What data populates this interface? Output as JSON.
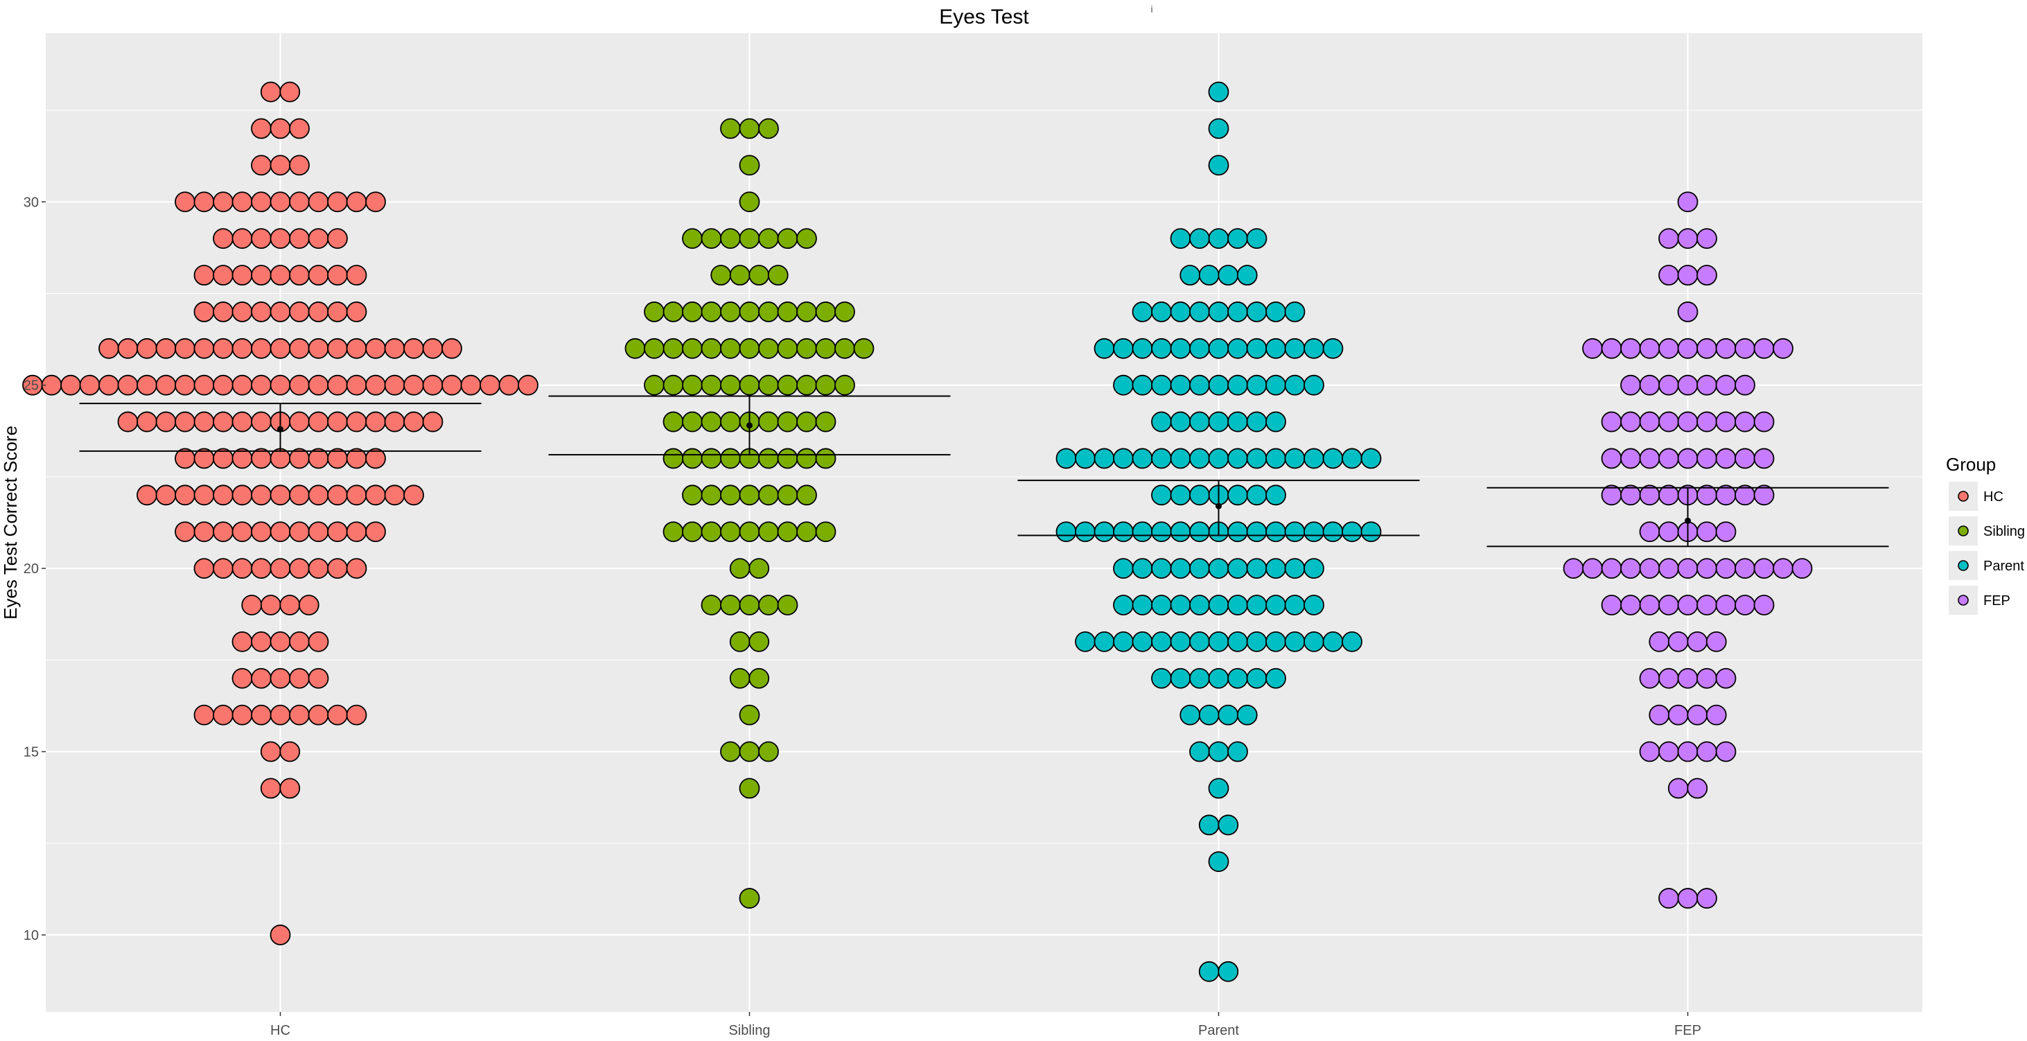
{
  "chart_data": {
    "type": "scatter",
    "subtype": "dotplot-with-mean-and-confidence-interval",
    "title": "Eyes Test",
    "title_mark": "i",
    "xlabel": "",
    "ylabel": "Eyes Test Correct Score",
    "categories": [
      "HC",
      "Sibling",
      "Parent",
      "FEP"
    ],
    "ylim": [
      7.9,
      34.6
    ],
    "yticks": [
      10,
      15,
      20,
      25,
      30
    ],
    "grid": true,
    "legend": {
      "title": "Group",
      "position": "right",
      "entries": [
        "HC",
        "Sibling",
        "Parent",
        "FEP"
      ]
    },
    "series": [
      {
        "name": "HC",
        "color": "#F8766D",
        "counts": [
          {
            "score": 33,
            "n": 2
          },
          {
            "score": 32,
            "n": 3
          },
          {
            "score": 31,
            "n": 3
          },
          {
            "score": 30,
            "n": 11
          },
          {
            "score": 29,
            "n": 7
          },
          {
            "score": 28,
            "n": 9
          },
          {
            "score": 27,
            "n": 9
          },
          {
            "score": 26,
            "n": 19
          },
          {
            "score": 25,
            "n": 27
          },
          {
            "score": 24,
            "n": 17
          },
          {
            "score": 23,
            "n": 11
          },
          {
            "score": 22,
            "n": 15
          },
          {
            "score": 21,
            "n": 11
          },
          {
            "score": 20,
            "n": 9
          },
          {
            "score": 19,
            "n": 4
          },
          {
            "score": 18,
            "n": 5
          },
          {
            "score": 17,
            "n": 5
          },
          {
            "score": 16,
            "n": 9
          },
          {
            "score": 15,
            "n": 2
          },
          {
            "score": 14,
            "n": 2
          },
          {
            "score": 10,
            "n": 1
          }
        ],
        "mean": 23.8,
        "ci": [
          23.2,
          24.5
        ]
      },
      {
        "name": "Sibling",
        "color": "#7CAE00",
        "counts": [
          {
            "score": 32,
            "n": 3
          },
          {
            "score": 31,
            "n": 1
          },
          {
            "score": 30,
            "n": 1
          },
          {
            "score": 29,
            "n": 7
          },
          {
            "score": 28,
            "n": 4
          },
          {
            "score": 27,
            "n": 11
          },
          {
            "score": 26,
            "n": 13
          },
          {
            "score": 25,
            "n": 11
          },
          {
            "score": 24,
            "n": 9
          },
          {
            "score": 23,
            "n": 9
          },
          {
            "score": 22,
            "n": 7
          },
          {
            "score": 21,
            "n": 9
          },
          {
            "score": 20,
            "n": 2
          },
          {
            "score": 19,
            "n": 5
          },
          {
            "score": 18,
            "n": 2
          },
          {
            "score": 17,
            "n": 2
          },
          {
            "score": 16,
            "n": 1
          },
          {
            "score": 15,
            "n": 3
          },
          {
            "score": 14,
            "n": 1
          },
          {
            "score": 11,
            "n": 1
          }
        ],
        "mean": 23.9,
        "ci": [
          23.1,
          24.7
        ]
      },
      {
        "name": "Parent",
        "color": "#00BFC4",
        "counts": [
          {
            "score": 33,
            "n": 1
          },
          {
            "score": 32,
            "n": 1
          },
          {
            "score": 31,
            "n": 1
          },
          {
            "score": 29,
            "n": 5
          },
          {
            "score": 28,
            "n": 4
          },
          {
            "score": 27,
            "n": 9
          },
          {
            "score": 26,
            "n": 13
          },
          {
            "score": 25,
            "n": 11
          },
          {
            "score": 24,
            "n": 7
          },
          {
            "score": 23,
            "n": 17
          },
          {
            "score": 22,
            "n": 7
          },
          {
            "score": 21,
            "n": 17
          },
          {
            "score": 20,
            "n": 11
          },
          {
            "score": 19,
            "n": 11
          },
          {
            "score": 18,
            "n": 15
          },
          {
            "score": 17,
            "n": 7
          },
          {
            "score": 16,
            "n": 4
          },
          {
            "score": 15,
            "n": 3
          },
          {
            "score": 14,
            "n": 1
          },
          {
            "score": 13,
            "n": 2
          },
          {
            "score": 12,
            "n": 1
          },
          {
            "score": 9,
            "n": 2
          }
        ],
        "mean": 21.7,
        "ci": [
          20.9,
          22.4
        ]
      },
      {
        "name": "FEP",
        "color": "#C77CFF",
        "counts": [
          {
            "score": 30,
            "n": 1
          },
          {
            "score": 29,
            "n": 3
          },
          {
            "score": 28,
            "n": 3
          },
          {
            "score": 27,
            "n": 1
          },
          {
            "score": 26,
            "n": 11
          },
          {
            "score": 25,
            "n": 7
          },
          {
            "score": 24,
            "n": 9
          },
          {
            "score": 23,
            "n": 9
          },
          {
            "score": 22,
            "n": 9
          },
          {
            "score": 21,
            "n": 5
          },
          {
            "score": 20,
            "n": 13
          },
          {
            "score": 19,
            "n": 9
          },
          {
            "score": 18,
            "n": 4
          },
          {
            "score": 17,
            "n": 5
          },
          {
            "score": 16,
            "n": 4
          },
          {
            "score": 15,
            "n": 5
          },
          {
            "score": 14,
            "n": 2
          },
          {
            "score": 11,
            "n": 3
          }
        ],
        "mean": 21.3,
        "ci": [
          20.6,
          22.2
        ]
      }
    ]
  }
}
